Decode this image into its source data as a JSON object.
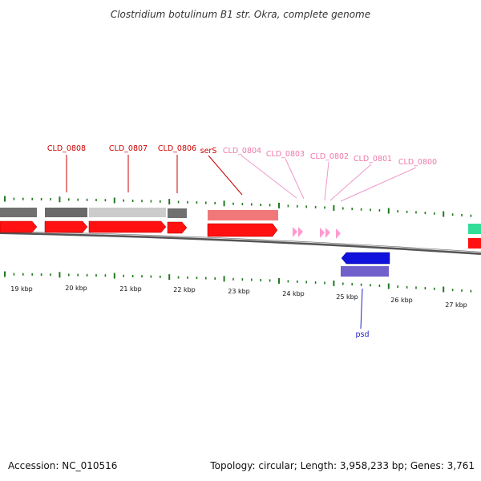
{
  "title": "Clostridium botulinum B1 str. Okra, complete genome",
  "footer": {
    "accession": "Accession: NC_010516",
    "summary": "Topology: circular; Length: 3,958,233 bp; Genes: 3,761"
  },
  "colors": {
    "red_gene": "#ff1111",
    "red_label": "#cc0000",
    "pink_label": "#ee77aa",
    "pink_arrow": "#ff9bd0",
    "blue_gene": "#1111dd",
    "blue_label": "#2222cc",
    "purple_gene": "#7060cc",
    "tick": "#1f7a1f",
    "dark_gray": "#707070",
    "light_gray": "#cccccc",
    "salmon": "#f07878",
    "teal": "#33dd99"
  },
  "scale_labels": [
    "19 kbp",
    "20 kbp",
    "21 kbp",
    "22 kbp",
    "23 kbp",
    "24 kbp",
    "25 kbp",
    "26 kbp",
    "27 kbp"
  ],
  "gene_labels": [
    {
      "text": "CLD_0808",
      "color": "red"
    },
    {
      "text": "CLD_0807",
      "color": "red"
    },
    {
      "text": "CLD_0806",
      "color": "red"
    },
    {
      "text": "serS",
      "color": "red"
    },
    {
      "text": "CLD_0804",
      "color": "pink"
    },
    {
      "text": "CLD_0803",
      "color": "pink"
    },
    {
      "text": "CLD_0802",
      "color": "pink"
    },
    {
      "text": "CLD_0801",
      "color": "pink"
    },
    {
      "text": "CLD_0800",
      "color": "pink"
    },
    {
      "text": "psd",
      "color": "blue"
    }
  ]
}
